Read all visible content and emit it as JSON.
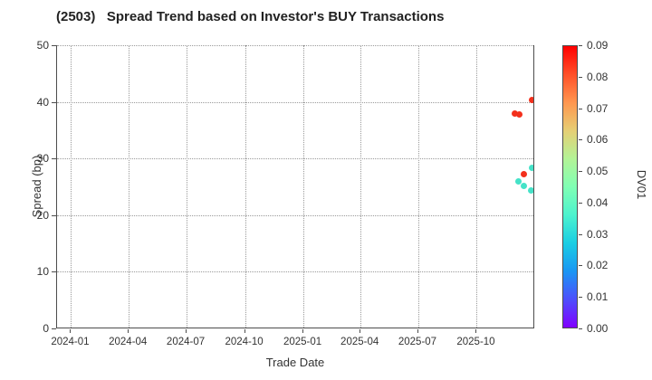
{
  "title": "(2503)   Spread Trend based on Investor's BUY Transactions",
  "chart_data": {
    "type": "scatter",
    "title": "(2503)   Spread Trend based on Investor's BUY Transactions",
    "xlabel": "Trade Date",
    "ylabel": "Spread (bp)",
    "ylim": [
      0,
      50
    ],
    "x_domain": [
      "2023-12-10",
      "2026-01-01"
    ],
    "grid": "dotted",
    "legend_position": "none",
    "y_ticks": [
      0,
      10,
      20,
      30,
      40,
      50
    ],
    "x_ticks": [
      {
        "date": "2024-01-01",
        "label": "2024-01"
      },
      {
        "date": "2024-04-01",
        "label": "2024-04"
      },
      {
        "date": "2024-07-01",
        "label": "2024-07"
      },
      {
        "date": "2024-10-01",
        "label": "2024-10"
      },
      {
        "date": "2025-01-01",
        "label": "2025-01"
      },
      {
        "date": "2025-04-01",
        "label": "2025-04"
      },
      {
        "date": "2025-07-01",
        "label": "2025-07"
      },
      {
        "date": "2025-10-01",
        "label": "2025-10"
      }
    ],
    "points": [
      {
        "date": "2025-11-30",
        "spread": 38.0,
        "dv01": 0.085,
        "color": "#f3301c"
      },
      {
        "date": "2025-12-07",
        "spread": 37.8,
        "dv01": 0.085,
        "color": "#f3301c"
      },
      {
        "date": "2025-12-27",
        "spread": 40.3,
        "dv01": 0.085,
        "color": "#f3301c"
      },
      {
        "date": "2025-12-27",
        "spread": 28.4,
        "dv01": 0.035,
        "color": "#45e2c8"
      },
      {
        "date": "2025-12-14",
        "spread": 27.3,
        "dv01": 0.085,
        "color": "#f3301c"
      },
      {
        "date": "2025-12-06",
        "spread": 25.9,
        "dv01": 0.035,
        "color": "#45e2c8"
      },
      {
        "date": "2025-12-14",
        "spread": 25.1,
        "dv01": 0.035,
        "color": "#45e2c8"
      },
      {
        "date": "2025-12-25",
        "spread": 24.3,
        "dv01": 0.035,
        "color": "#45e2c8"
      }
    ],
    "colorbar": {
      "label": "DV01",
      "min": 0.0,
      "max": 0.09,
      "tick_labels": [
        "0.00",
        "0.01",
        "0.02",
        "0.03",
        "0.04",
        "0.05",
        "0.06",
        "0.07",
        "0.08",
        "0.09"
      ],
      "gradient_stops_bottom_to_top": [
        "#8000ff",
        "#4d4ffc",
        "#1a96f3",
        "#1acee3",
        "#4df3ce",
        "#80ffb4",
        "#b3f396",
        "#e6ce74",
        "#ff964f",
        "#ff4f28",
        "#ff0000"
      ]
    },
    "colors": {
      "spine": "#4d4d4d",
      "grid": "#9a9a9a",
      "text": "#333333"
    }
  }
}
